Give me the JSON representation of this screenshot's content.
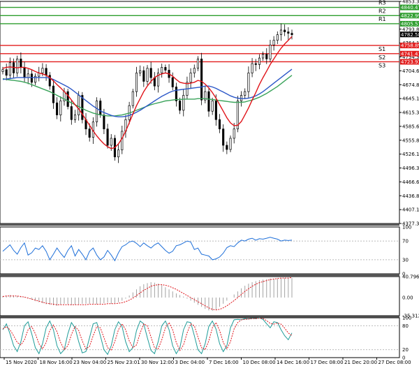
{
  "chart_data": [
    {
      "type": "candlestick",
      "panel": "price",
      "ylim": [
        4377.35,
        4853.35
      ],
      "y_ticks": [
        "4853.35",
        "4823.55",
        "4793.85",
        "4764.15",
        "4734.35",
        "4704.60",
        "4674.85",
        "4645.10",
        "4615.35",
        "4585.60",
        "4555.85",
        "4526.10",
        "4496.35",
        "4466.60",
        "4436.85",
        "4407.10",
        "4377.35"
      ],
      "x_ticks": [
        "15 Nov 2020",
        "18 Nov 16:00",
        "23 Nov 04:00",
        "25 Nov 23:01",
        "30 Nov 12:00",
        "3 Dec 04:00",
        "7 Dec 16:00",
        "10 Dec 08:00",
        "14 Dec 16:00",
        "17 Dec 08:00",
        "21 Dec 20:00",
        "27 Dec 08:00"
      ],
      "last_price": "4782.58",
      "close": [
        4707,
        4695,
        4722,
        4700,
        4730,
        4712,
        4690,
        4698,
        4680,
        4693,
        4700,
        4710,
        4695,
        4672,
        4636,
        4610,
        4640,
        4660,
        4628,
        4600,
        4610,
        4652,
        4600,
        4580,
        4562,
        4595,
        4640,
        4610,
        4580,
        4545,
        4560,
        4520,
        4535,
        4575,
        4600,
        4630,
        4660,
        4700,
        4705,
        4682,
        4710,
        4690,
        4672,
        4700,
        4712,
        4706,
        4690,
        4670,
        4640,
        4620,
        4652,
        4680,
        4700,
        4710,
        4730,
        4642,
        4660,
        4618,
        4640,
        4600,
        4580,
        4545,
        4536,
        4560,
        4580,
        4640,
        4652,
        4660,
        4700,
        4720,
        4718,
        4732,
        4740,
        4730,
        4760,
        4770,
        4782,
        4792,
        4788,
        4785,
        4782
      ],
      "ma_red": [
        4710,
        4712,
        4713,
        4712,
        4711,
        4712,
        4712,
        4710,
        4707,
        4703,
        4700,
        4698,
        4695,
        4690,
        4683,
        4675,
        4668,
        4660,
        4652,
        4642,
        4632,
        4623,
        4612,
        4600,
        4588,
        4576,
        4565,
        4556,
        4548,
        4542,
        4538,
        4540,
        4548,
        4560,
        4575,
        4593,
        4612,
        4630,
        4645,
        4660,
        4672,
        4682,
        4690,
        4695,
        4698,
        4700,
        4698,
        4693,
        4686,
        4680,
        4678,
        4677,
        4678,
        4680,
        4684,
        4682,
        4676,
        4668,
        4658,
        4646,
        4632,
        4618,
        4604,
        4593,
        4587,
        4588,
        4596,
        4610,
        4625,
        4642,
        4658,
        4675,
        4690,
        4704,
        4718,
        4730,
        4742,
        4753,
        4762,
        4770,
        4778
      ],
      "ma_blue": [
        4686,
        4687,
        4688,
        4689,
        4690,
        4690,
        4690,
        4690,
        4690,
        4690,
        4690,
        4690,
        4690,
        4689,
        4686,
        4682,
        4678,
        4674,
        4670,
        4665,
        4659,
        4653,
        4647,
        4641,
        4635,
        4629,
        4624,
        4619,
        4615,
        4612,
        4609,
        4607,
        4606,
        4606,
        4607,
        4609,
        4612,
        4616,
        4620,
        4625,
        4630,
        4635,
        4640,
        4645,
        4650,
        4654,
        4658,
        4661,
        4663,
        4664,
        4665,
        4666,
        4667,
        4668,
        4669,
        4670,
        4672,
        4672,
        4670,
        4667,
        4663,
        4659,
        4655,
        4651,
        4648,
        4646,
        4645,
        4645,
        4646,
        4648,
        4651,
        4655,
        4660,
        4666,
        4672,
        4678,
        4684,
        4690,
        4696,
        4702,
        4708
      ],
      "ma_green": [
        4688,
        4686,
        4685,
        4684,
        4683,
        4682,
        4680,
        4678,
        4675,
        4672,
        4669,
        4666,
        4663,
        4660,
        4656,
        4652,
        4648,
        4644,
        4640,
        4636,
        4632,
        4628,
        4624,
        4620,
        4617,
        4614,
        4612,
        4610,
        4609,
        4608,
        4608,
        4608,
        4609,
        4610,
        4612,
        4614,
        4617,
        4620,
        4623,
        4626,
        4629,
        4632,
        4634,
        4636,
        4638,
        4640,
        4641,
        4642,
        4643,
        4643,
        4644,
        4644,
        4644,
        4644,
        4645,
        4645,
        4645,
        4644,
        4643,
        4642,
        4641,
        4640,
        4639,
        4638,
        4637,
        4637,
        4637,
        4638,
        4640,
        4642,
        4645,
        4648,
        4652,
        4656,
        4661,
        4666,
        4671,
        4677,
        4683,
        4689,
        4695
      ],
      "levels": [
        {
          "name": "R3",
          "value": "4840.47",
          "color": "#2e9e2e"
        },
        {
          "name": "R2",
          "value": "4822.99",
          "color": "#2e9e2e"
        },
        {
          "name": "R1",
          "value": "4805.51",
          "color": "#2e9e2e"
        },
        {
          "name": "S1",
          "value": "4758.89",
          "color": "#e21d1d"
        },
        {
          "name": "S2",
          "value": "4741.41",
          "color": "#e21d1d"
        },
        {
          "name": "S3",
          "value": "4723.93",
          "color": "#e21d1d"
        }
      ]
    },
    {
      "type": "line",
      "panel": "rsi",
      "ylim": [
        0,
        100
      ],
      "y_ticks": [
        "100",
        "70",
        "30",
        "0"
      ],
      "values": [
        48,
        55,
        62,
        50,
        42,
        56,
        66,
        40,
        45,
        55,
        52,
        60,
        48,
        30,
        42,
        55,
        44,
        35,
        50,
        60,
        38,
        52,
        42,
        30,
        48,
        55,
        40,
        30,
        36,
        50,
        40,
        28,
        45,
        58,
        62,
        68,
        70,
        65,
        58,
        66,
        60,
        55,
        62,
        66,
        58,
        50,
        44,
        48,
        60,
        62,
        66,
        70,
        68,
        52,
        55,
        42,
        40,
        38,
        30,
        32,
        36,
        44,
        56,
        60,
        58,
        66,
        72,
        70,
        74,
        76,
        72,
        75,
        74,
        76,
        78,
        76,
        74,
        70,
        72,
        71,
        72
      ]
    },
    {
      "type": "histogram+line",
      "panel": "macd",
      "ylim": [
        -35.312,
        40.796
      ],
      "y_ticks": [
        "40.796",
        "0.00",
        "-35.312"
      ],
      "histogram": [
        3,
        4,
        5,
        4,
        3,
        2,
        1,
        -2,
        -4,
        -7,
        -9,
        -11,
        -13,
        -14,
        -15,
        -16,
        -14,
        -12,
        -13,
        -15,
        -14,
        -13,
        -12,
        -12,
        -12,
        -12,
        -13,
        -12,
        -11,
        -10,
        -12,
        -11,
        -9,
        -6,
        -2,
        4,
        10,
        16,
        22,
        26,
        28,
        30,
        29,
        27,
        24,
        20,
        16,
        12,
        8,
        5,
        2,
        -2,
        -6,
        -10,
        -14,
        -18,
        -22,
        -25,
        -26,
        -24,
        -18,
        -12,
        -6,
        0,
        6,
        12,
        18,
        23,
        27,
        30,
        32,
        34,
        35,
        36,
        37,
        37,
        37,
        38,
        38,
        38,
        38
      ],
      "signal": [
        2,
        3,
        3,
        3,
        3,
        2,
        1,
        -1,
        -3,
        -5,
        -7,
        -9,
        -11,
        -12,
        -13,
        -14,
        -14,
        -14,
        -14,
        -14,
        -14,
        -14,
        -14,
        -14,
        -13,
        -13,
        -13,
        -13,
        -13,
        -12,
        -12,
        -12,
        -11,
        -10,
        -8,
        -5,
        -1,
        4,
        9,
        14,
        18,
        22,
        24,
        25,
        25,
        24,
        22,
        19,
        16,
        12,
        8,
        4,
        0,
        -4,
        -8,
        -12,
        -16,
        -20,
        -23,
        -24,
        -23,
        -20,
        -16,
        -11,
        -6,
        0,
        6,
        12,
        17,
        22,
        26,
        29,
        31,
        33,
        35,
        36,
        37,
        38,
        38,
        38,
        39
      ]
    },
    {
      "type": "line",
      "panel": "stochastic",
      "ylim": [
        0,
        100
      ],
      "y_ticks": [
        "100",
        "80",
        "20",
        "0"
      ],
      "k": [
        70,
        85,
        60,
        30,
        15,
        40,
        80,
        90,
        60,
        25,
        10,
        35,
        75,
        92,
        70,
        30,
        10,
        20,
        60,
        88,
        75,
        40,
        12,
        15,
        50,
        85,
        88,
        55,
        20,
        8,
        30,
        70,
        90,
        78,
        40,
        15,
        25,
        68,
        92,
        85,
        50,
        18,
        10,
        40,
        80,
        92,
        70,
        30,
        10,
        25,
        70,
        90,
        88,
        55,
        20,
        10,
        35,
        78,
        92,
        72,
        35,
        15,
        30,
        75,
        95,
        96,
        95,
        98,
        97,
        99,
        98,
        100,
        96,
        85,
        75,
        90,
        88,
        70,
        55,
        45,
        62
      ],
      "d": [
        72,
        78,
        70,
        55,
        38,
        32,
        45,
        70,
        78,
        60,
        35,
        22,
        38,
        68,
        82,
        65,
        38,
        20,
        30,
        58,
        78,
        68,
        42,
        22,
        28,
        55,
        78,
        75,
        50,
        25,
        18,
        40,
        70,
        85,
        70,
        42,
        25,
        32,
        62,
        85,
        80,
        52,
        25,
        22,
        45,
        75,
        88,
        70,
        38,
        18,
        32,
        62,
        85,
        80,
        52,
        25,
        20,
        42,
        75,
        88,
        68,
        38,
        22,
        40,
        72,
        88,
        95,
        96,
        97,
        98,
        98,
        99,
        98,
        93,
        86,
        84,
        87,
        84,
        74,
        62,
        55
      ]
    }
  ]
}
